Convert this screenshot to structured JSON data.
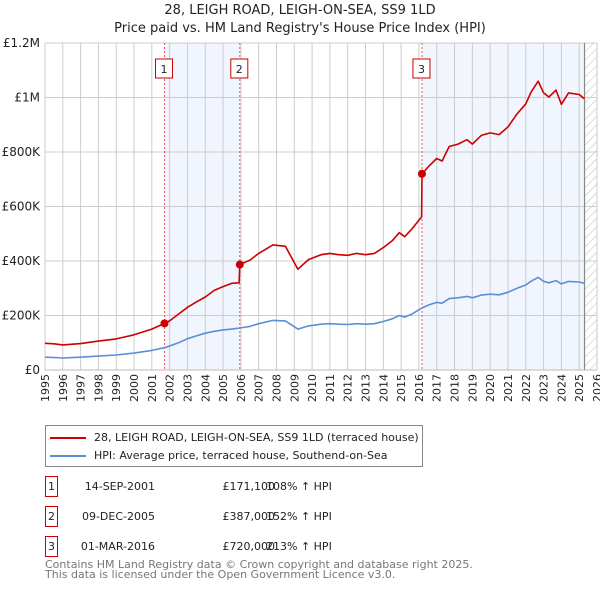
{
  "chart_data": {
    "type": "line",
    "title": "28, LEIGH ROAD, LEIGH-ON-SEA, SS9 1LD",
    "subtitle": "Price paid vs. HM Land Registry's House Price Index (HPI)",
    "xlabel": "",
    "ylabel": "",
    "xlim": [
      1995,
      2026
    ],
    "ylim": [
      0,
      1200000
    ],
    "grid": true,
    "y_ticks": [
      {
        "v": 0,
        "label": "£0"
      },
      {
        "v": 200000,
        "label": "£200K"
      },
      {
        "v": 400000,
        "label": "£400K"
      },
      {
        "v": 600000,
        "label": "£600K"
      },
      {
        "v": 800000,
        "label": "£800K"
      },
      {
        "v": 1000000,
        "label": "£1M"
      },
      {
        "v": 1200000,
        "label": "£1.2M"
      }
    ],
    "x_ticks": [
      "1995",
      "1996",
      "1997",
      "1998",
      "1999",
      "2000",
      "2001",
      "2002",
      "2003",
      "2004",
      "2005",
      "2006",
      "2007",
      "2008",
      "2009",
      "2010",
      "2011",
      "2012",
      "2013",
      "2014",
      "2015",
      "2016",
      "2017",
      "2018",
      "2019",
      "2020",
      "2021",
      "2022",
      "2023",
      "2024",
      "2025",
      "2026"
    ],
    "shaded_ranges": [
      [
        2001.71,
        2005.94
      ],
      [
        2016.17,
        2025.3
      ]
    ],
    "forecast_hatch_from": 2025.3,
    "series": [
      {
        "name": "28, LEIGH ROAD, LEIGH-ON-SEA, SS9 1LD (terraced house)",
        "color": "#cc0000",
        "points": [
          [
            1995,
            98
          ],
          [
            1995.5,
            96
          ],
          [
            1996,
            92
          ],
          [
            1997,
            97
          ],
          [
            1998,
            106
          ],
          [
            1999,
            114
          ],
          [
            2000,
            129
          ],
          [
            2001,
            150
          ],
          [
            2001.71,
            171.1
          ],
          [
            2002,
            180
          ],
          [
            2002.5,
            205
          ],
          [
            2003,
            230
          ],
          [
            2003.5,
            250
          ],
          [
            2004,
            268
          ],
          [
            2004.5,
            292
          ],
          [
            2005,
            306
          ],
          [
            2005.5,
            318
          ],
          [
            2005.9,
            320
          ],
          [
            2005.94,
            387
          ],
          [
            2006.5,
            403
          ],
          [
            2007,
            428
          ],
          [
            2007.8,
            459
          ],
          [
            2008.5,
            454
          ],
          [
            2009.2,
            370
          ],
          [
            2009.8,
            405
          ],
          [
            2010.5,
            423
          ],
          [
            2011,
            428
          ],
          [
            2011.5,
            423
          ],
          [
            2012,
            421
          ],
          [
            2012.5,
            428
          ],
          [
            2013,
            423
          ],
          [
            2013.5,
            428
          ],
          [
            2014,
            449
          ],
          [
            2014.5,
            474
          ],
          [
            2014.9,
            504
          ],
          [
            2015.2,
            489
          ],
          [
            2015.6,
            517
          ],
          [
            2016.15,
            562
          ],
          [
            2016.17,
            720
          ],
          [
            2016.6,
            751
          ],
          [
            2017,
            776
          ],
          [
            2017.3,
            767
          ],
          [
            2017.7,
            820
          ],
          [
            2018.2,
            829
          ],
          [
            2018.7,
            845
          ],
          [
            2019,
            829
          ],
          [
            2019.5,
            861
          ],
          [
            2020,
            870
          ],
          [
            2020.5,
            864
          ],
          [
            2021,
            892
          ],
          [
            2021.5,
            939
          ],
          [
            2022,
            977
          ],
          [
            2022.3,
            1020
          ],
          [
            2022.7,
            1060
          ],
          [
            2023,
            1017
          ],
          [
            2023.3,
            1002
          ],
          [
            2023.7,
            1027
          ],
          [
            2024,
            975
          ],
          [
            2024.4,
            1017
          ],
          [
            2025,
            1011
          ],
          [
            2025.3,
            995
          ]
        ]
      },
      {
        "name": "HPI: Average price, terraced house, Southend-on-Sea",
        "color": "#5b8fd4",
        "points": [
          [
            1995,
            47
          ],
          [
            1995.5,
            46
          ],
          [
            1996,
            44
          ],
          [
            1997,
            47
          ],
          [
            1998,
            51
          ],
          [
            1999,
            55
          ],
          [
            2000,
            62
          ],
          [
            2001,
            72
          ],
          [
            2001.71,
            82
          ],
          [
            2002,
            88
          ],
          [
            2002.5,
            100
          ],
          [
            2003,
            115
          ],
          [
            2003.5,
            125
          ],
          [
            2004,
            135
          ],
          [
            2004.5,
            142
          ],
          [
            2005,
            147
          ],
          [
            2005.5,
            150
          ],
          [
            2005.94,
            154
          ],
          [
            2006.5,
            160
          ],
          [
            2007,
            170
          ],
          [
            2007.8,
            182
          ],
          [
            2008.5,
            180
          ],
          [
            2009.2,
            150
          ],
          [
            2009.8,
            162
          ],
          [
            2010.5,
            168
          ],
          [
            2011,
            170
          ],
          [
            2011.5,
            168
          ],
          [
            2012,
            167
          ],
          [
            2012.5,
            170
          ],
          [
            2013,
            168
          ],
          [
            2013.5,
            170
          ],
          [
            2014,
            178
          ],
          [
            2014.5,
            188
          ],
          [
            2014.9,
            200
          ],
          [
            2015.2,
            194
          ],
          [
            2015.6,
            205
          ],
          [
            2016.17,
            228
          ],
          [
            2016.6,
            240
          ],
          [
            2017,
            248
          ],
          [
            2017.3,
            245
          ],
          [
            2017.7,
            262
          ],
          [
            2018.2,
            265
          ],
          [
            2018.7,
            270
          ],
          [
            2019,
            265
          ],
          [
            2019.5,
            275
          ],
          [
            2020,
            278
          ],
          [
            2020.5,
            276
          ],
          [
            2021,
            285
          ],
          [
            2021.5,
            300
          ],
          [
            2022,
            312
          ],
          [
            2022.3,
            326
          ],
          [
            2022.7,
            340
          ],
          [
            2023,
            325
          ],
          [
            2023.3,
            320
          ],
          [
            2023.7,
            328
          ],
          [
            2024,
            316
          ],
          [
            2024.4,
            325
          ],
          [
            2025,
            323
          ],
          [
            2025.3,
            318
          ]
        ]
      }
    ],
    "value_unit": "thousands GBP",
    "annotations": [
      {
        "label": "1",
        "x": 2001.71,
        "y": 171.1
      },
      {
        "label": "2",
        "x": 2005.94,
        "y": 387
      },
      {
        "label": "3",
        "x": 2016.17,
        "y": 720
      }
    ],
    "legend_position": "bottom"
  },
  "sales": [
    {
      "num": "1",
      "date": "14-SEP-2001",
      "price": "£171,100",
      "hpi": "108% ↑ HPI"
    },
    {
      "num": "2",
      "date": "09-DEC-2005",
      "price": "£387,000",
      "hpi": "152% ↑ HPI"
    },
    {
      "num": "3",
      "date": "01-MAR-2016",
      "price": "£720,000",
      "hpi": "213% ↑ HPI"
    }
  ],
  "footer": {
    "line1": "Contains HM Land Registry data © Crown copyright and database right 2025.",
    "line2": "This data is licensed under the Open Government Licence v3.0."
  }
}
